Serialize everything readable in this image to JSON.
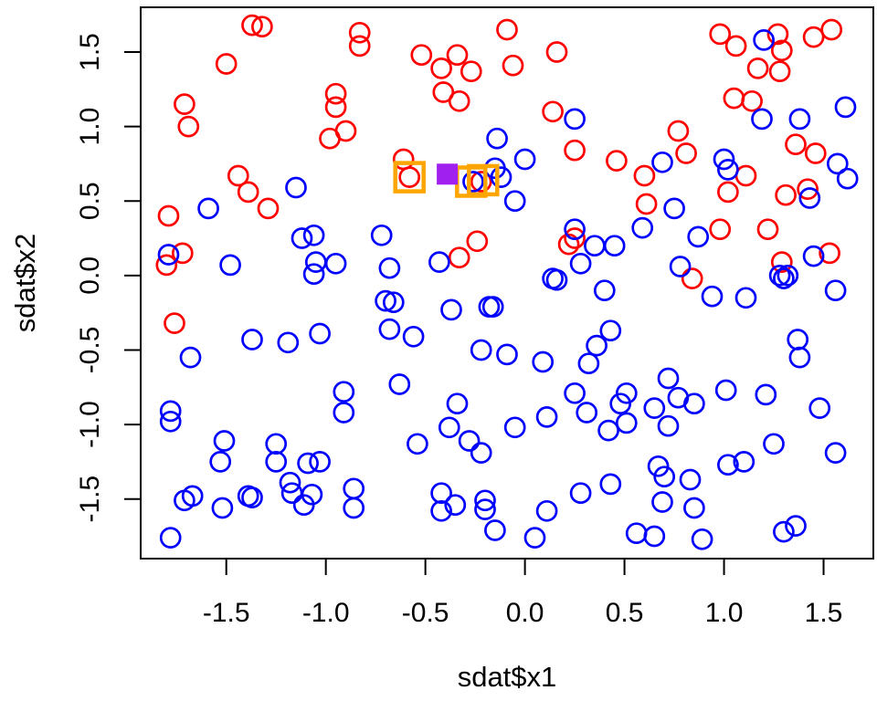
{
  "figure": {
    "background": "#FFFFFF",
    "frame_color": "#000000",
    "x_tick_labels": [
      "-1.5",
      "-1.0",
      "-0.5",
      "0.0",
      "0.5",
      "1.0",
      "1.5"
    ],
    "y_tick_labels": [
      "-1.5",
      "-1.0",
      "-0.5",
      "0.0",
      "0.5",
      "1.0",
      "1.5"
    ]
  },
  "chart_data": {
    "type": "scatter",
    "title": "",
    "xlabel": "sdat$x1",
    "ylabel": "sdat$x2",
    "xlim": [
      -1.93,
      1.75
    ],
    "ylim": [
      -1.9,
      1.8
    ],
    "x_ticks": [
      -1.5,
      -1.0,
      -0.5,
      0.0,
      0.5,
      1.0,
      1.5
    ],
    "y_ticks": [
      -1.5,
      -1.0,
      -0.5,
      0.0,
      0.5,
      1.0,
      1.5
    ],
    "grid": false,
    "legend_position": "none",
    "series": [
      {
        "name": "class-red",
        "marker": "open-circle",
        "color": "#FF0000",
        "points": [
          [
            -1.37,
            1.68
          ],
          [
            -1.32,
            1.67
          ],
          [
            -1.5,
            1.42
          ],
          [
            -1.71,
            1.15
          ],
          [
            -1.69,
            1.0
          ],
          [
            -1.44,
            0.67
          ],
          [
            -1.39,
            0.56
          ],
          [
            -0.83,
            1.63
          ],
          [
            -0.83,
            1.54
          ],
          [
            -0.52,
            1.48
          ],
          [
            -0.42,
            1.39
          ],
          [
            -0.34,
            1.48
          ],
          [
            -0.27,
            1.37
          ],
          [
            -0.41,
            1.23
          ],
          [
            -0.33,
            1.17
          ],
          [
            -0.95,
            1.22
          ],
          [
            -0.95,
            1.13
          ],
          [
            -0.98,
            0.92
          ],
          [
            -0.9,
            0.97
          ],
          [
            -0.61,
            0.78
          ],
          [
            -0.58,
            0.66
          ],
          [
            -0.22,
            0.63
          ],
          [
            -0.09,
            1.65
          ],
          [
            0.16,
            1.5
          ],
          [
            -0.06,
            1.41
          ],
          [
            0.14,
            1.1
          ],
          [
            0.25,
            0.84
          ],
          [
            0.46,
            0.77
          ],
          [
            0.6,
            0.67
          ],
          [
            0.77,
            0.97
          ],
          [
            0.81,
            0.82
          ],
          [
            0.98,
            1.62
          ],
          [
            1.06,
            1.54
          ],
          [
            1.27,
            1.62
          ],
          [
            1.29,
            1.51
          ],
          [
            1.17,
            1.39
          ],
          [
            1.28,
            1.37
          ],
          [
            1.45,
            1.6
          ],
          [
            1.54,
            1.65
          ],
          [
            1.05,
            1.19
          ],
          [
            1.14,
            1.17
          ],
          [
            1.36,
            0.88
          ],
          [
            1.46,
            0.82
          ],
          [
            1.11,
            0.67
          ],
          [
            -1.79,
            0.4
          ],
          [
            -1.29,
            0.45
          ],
          [
            -1.72,
            0.15
          ],
          [
            -1.8,
            0.07
          ],
          [
            -1.76,
            -0.32
          ],
          [
            -0.33,
            0.12
          ],
          [
            -0.24,
            0.23
          ],
          [
            0.61,
            0.48
          ],
          [
            0.25,
            0.25
          ],
          [
            0.22,
            0.21
          ],
          [
            1.02,
            0.56
          ],
          [
            1.31,
            0.54
          ],
          [
            1.42,
            0.58
          ],
          [
            0.98,
            0.31
          ],
          [
            1.22,
            0.31
          ],
          [
            1.29,
            0.09
          ],
          [
            1.53,
            0.15
          ],
          [
            0.84,
            -0.02
          ]
        ]
      },
      {
        "name": "class-blue",
        "marker": "open-circle",
        "color": "#0000FF",
        "points": [
          [
            -1.15,
            0.59
          ],
          [
            -0.14,
            0.92
          ],
          [
            -0.15,
            0.72
          ],
          [
            -0.12,
            0.66
          ],
          [
            -0.26,
            0.63
          ],
          [
            0.0,
            0.78
          ],
          [
            -0.05,
            0.5
          ],
          [
            0.25,
            1.05
          ],
          [
            0.69,
            0.76
          ],
          [
            1.2,
            1.58
          ],
          [
            1.19,
            1.05
          ],
          [
            1.38,
            1.05
          ],
          [
            1.61,
            1.13
          ],
          [
            1.57,
            0.75
          ],
          [
            1.0,
            0.78
          ],
          [
            1.02,
            0.71
          ],
          [
            1.62,
            0.65
          ],
          [
            1.43,
            0.52
          ],
          [
            -1.59,
            0.45
          ],
          [
            -1.79,
            0.14
          ],
          [
            -1.48,
            0.07
          ],
          [
            -1.12,
            0.25
          ],
          [
            -1.06,
            0.27
          ],
          [
            -1.05,
            0.09
          ],
          [
            -1.06,
            0.01
          ],
          [
            -1.37,
            -0.43
          ],
          [
            -1.19,
            -0.45
          ],
          [
            -1.03,
            -0.39
          ],
          [
            -1.68,
            -0.55
          ],
          [
            -0.72,
            0.27
          ],
          [
            -0.95,
            0.08
          ],
          [
            -0.68,
            0.05
          ],
          [
            -0.43,
            0.09
          ],
          [
            -0.7,
            -0.17
          ],
          [
            -0.66,
            -0.18
          ],
          [
            -0.37,
            -0.23
          ],
          [
            -0.18,
            -0.21
          ],
          [
            -0.16,
            -0.21
          ],
          [
            -0.68,
            -0.36
          ],
          [
            -0.56,
            -0.41
          ],
          [
            -0.22,
            -0.5
          ],
          [
            -0.09,
            -0.53
          ],
          [
            0.75,
            0.45
          ],
          [
            0.59,
            0.32
          ],
          [
            0.25,
            0.31
          ],
          [
            0.35,
            0.2
          ],
          [
            0.45,
            0.2
          ],
          [
            0.28,
            0.08
          ],
          [
            0.14,
            -0.02
          ],
          [
            0.16,
            -0.03
          ],
          [
            0.4,
            -0.1
          ],
          [
            0.78,
            0.06
          ],
          [
            0.43,
            -0.37
          ],
          [
            0.36,
            -0.47
          ],
          [
            0.32,
            -0.59
          ],
          [
            0.09,
            -0.58
          ],
          [
            0.87,
            0.26
          ],
          [
            1.45,
            0.13
          ],
          [
            1.28,
            0.0
          ],
          [
            1.32,
            0.0
          ],
          [
            1.3,
            -0.02
          ],
          [
            0.94,
            -0.14
          ],
          [
            1.11,
            -0.15
          ],
          [
            1.56,
            -0.1
          ],
          [
            1.37,
            -0.43
          ],
          [
            1.38,
            -0.55
          ],
          [
            -1.78,
            -0.91
          ],
          [
            -1.78,
            -0.98
          ],
          [
            -1.51,
            -1.11
          ],
          [
            -1.53,
            -1.25
          ],
          [
            -1.25,
            -1.13
          ],
          [
            -1.25,
            -1.25
          ],
          [
            -1.09,
            -1.26
          ],
          [
            -1.03,
            -1.25
          ],
          [
            -1.18,
            -1.39
          ],
          [
            -1.17,
            -1.46
          ],
          [
            -1.07,
            -1.47
          ],
          [
            -1.11,
            -1.54
          ],
          [
            -1.71,
            -1.51
          ],
          [
            -1.67,
            -1.48
          ],
          [
            -1.39,
            -1.48
          ],
          [
            -1.37,
            -1.49
          ],
          [
            -1.52,
            -1.56
          ],
          [
            -1.78,
            -1.76
          ],
          [
            -0.91,
            -0.78
          ],
          [
            -0.63,
            -0.73
          ],
          [
            -0.91,
            -0.92
          ],
          [
            -0.34,
            -0.86
          ],
          [
            -0.38,
            -1.02
          ],
          [
            -0.54,
            -1.13
          ],
          [
            -0.28,
            -1.11
          ],
          [
            -0.22,
            -1.19
          ],
          [
            -0.86,
            -1.43
          ],
          [
            -0.86,
            -1.56
          ],
          [
            -0.42,
            -1.46
          ],
          [
            -0.42,
            -1.58
          ],
          [
            -0.35,
            -1.54
          ],
          [
            -0.2,
            -1.51
          ],
          [
            -0.2,
            -1.57
          ],
          [
            -0.15,
            -1.71
          ],
          [
            -0.05,
            -1.02
          ],
          [
            0.11,
            -0.95
          ],
          [
            0.25,
            -0.79
          ],
          [
            0.31,
            -0.92
          ],
          [
            0.42,
            -1.04
          ],
          [
            0.48,
            -0.86
          ],
          [
            0.51,
            -0.79
          ],
          [
            0.51,
            -0.99
          ],
          [
            0.65,
            -0.89
          ],
          [
            0.72,
            -0.69
          ],
          [
            0.77,
            -0.82
          ],
          [
            0.72,
            -1.01
          ],
          [
            0.67,
            -1.28
          ],
          [
            0.7,
            -1.35
          ],
          [
            0.83,
            -1.37
          ],
          [
            0.43,
            -1.4
          ],
          [
            0.28,
            -1.46
          ],
          [
            0.11,
            -1.58
          ],
          [
            0.05,
            -1.76
          ],
          [
            0.56,
            -1.73
          ],
          [
            0.65,
            -1.75
          ],
          [
            0.69,
            -1.52
          ],
          [
            0.85,
            -0.86
          ],
          [
            1.01,
            -0.77
          ],
          [
            1.21,
            -0.8
          ],
          [
            1.48,
            -0.89
          ],
          [
            1.25,
            -1.13
          ],
          [
            1.02,
            -1.27
          ],
          [
            1.1,
            -1.25
          ],
          [
            1.56,
            -1.19
          ],
          [
            0.85,
            -1.56
          ],
          [
            1.3,
            -1.72
          ],
          [
            1.36,
            -1.68
          ],
          [
            0.89,
            -1.77
          ]
        ]
      }
    ],
    "annotations": {
      "query_point": {
        "marker": "filled-square",
        "color": "#A020F0",
        "x": -0.39,
        "y": 0.68
      },
      "nearest_neighbor_boxes": {
        "marker": "open-square",
        "color": "#FFA500",
        "points": [
          [
            -0.58,
            0.66
          ],
          [
            -0.27,
            0.63
          ],
          [
            -0.21,
            0.64
          ]
        ]
      }
    }
  }
}
